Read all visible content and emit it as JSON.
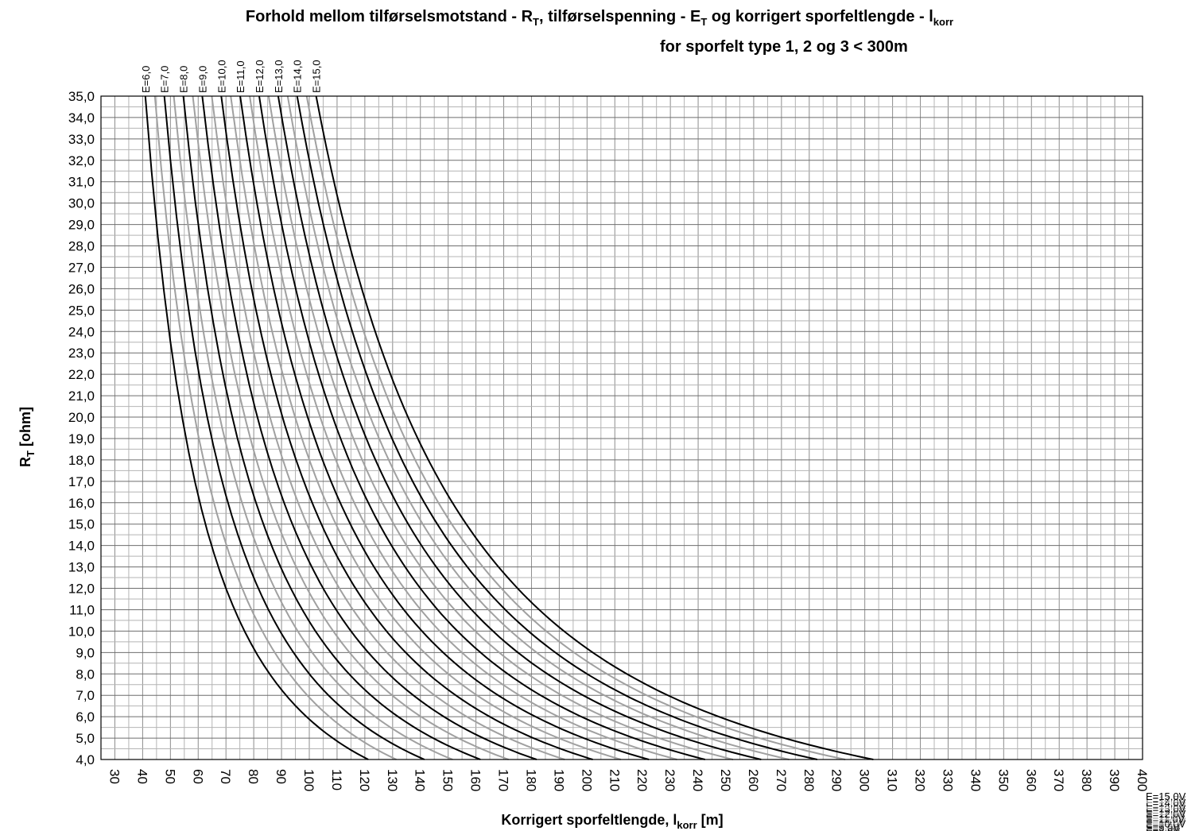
{
  "chart_data": {
    "type": "line",
    "title_parts": {
      "t1": "Forhold mellom tilførselsmotstand - R",
      "t1_sub": "T",
      "t2": ", tilførselspenning - E",
      "t2_sub": "T",
      "t3": " og korrigert sporfeltlengde - l",
      "t3_sub": "korr",
      "subtitle": "for sporfelt type 1, 2 og 3 < 300m"
    },
    "xlabel_parts": {
      "main": "Korrigert sporfeltlengde, l",
      "sub": "korr",
      "unit": " [m]"
    },
    "ylabel_parts": {
      "main": "R",
      "sub": "T",
      "unit": " [ohm]"
    },
    "xlim": [
      25,
      400
    ],
    "ylim": [
      4,
      35
    ],
    "x_ticks": [
      "30",
      "40",
      "50",
      "60",
      "70",
      "80",
      "90",
      "100",
      "110",
      "120",
      "130",
      "140",
      "150",
      "160",
      "170",
      "180",
      "190",
      "200",
      "210",
      "220",
      "230",
      "240",
      "250",
      "260",
      "270",
      "280",
      "290",
      "300",
      "310",
      "320",
      "330",
      "340",
      "350",
      "360",
      "370",
      "380",
      "390",
      "400"
    ],
    "y_ticks": [
      "4,0",
      "5,0",
      "6,0",
      "7,0",
      "8,0",
      "9,0",
      "10,0",
      "11,0",
      "12,0",
      "13,0",
      "14,0",
      "15,0",
      "16,0",
      "17,0",
      "18,0",
      "19,0",
      "20,0",
      "21,0",
      "22,0",
      "23,0",
      "24,0",
      "25,0",
      "26,0",
      "27,0",
      "28,0",
      "29,0",
      "30,0",
      "31,0",
      "32,0",
      "33,0",
      "34,0",
      "35,0"
    ],
    "grid": true,
    "model": "R = k * (E / l)^2",
    "model_k": 1633,
    "series": [
      {
        "voltage": 6.0,
        "top_label": "E=6,0",
        "end_label": "",
        "color": "#000000"
      },
      {
        "voltage": 6.5,
        "top_label": "",
        "end_label": "E=6,5V",
        "color": "#a0a0a0"
      },
      {
        "voltage": 7.0,
        "top_label": "E=7,0",
        "end_label": "E=7,0V",
        "color": "#000000"
      },
      {
        "voltage": 7.5,
        "top_label": "",
        "end_label": "E=7,5V",
        "color": "#a0a0a0"
      },
      {
        "voltage": 8.0,
        "top_label": "E=8,0",
        "end_label": "E=8,0V",
        "color": "#000000"
      },
      {
        "voltage": 8.5,
        "top_label": "",
        "end_label": "E=8,5V",
        "color": "#a0a0a0"
      },
      {
        "voltage": 9.0,
        "top_label": "E=9,0",
        "end_label": "E=9,0V",
        "color": "#000000"
      },
      {
        "voltage": 9.5,
        "top_label": "",
        "end_label": "E=9,5V",
        "color": "#a0a0a0"
      },
      {
        "voltage": 10.0,
        "top_label": "E=10,0",
        "end_label": "E=10,0V",
        "color": "#000000"
      },
      {
        "voltage": 10.5,
        "top_label": "",
        "end_label": "E=10,5V",
        "color": "#a0a0a0"
      },
      {
        "voltage": 11.0,
        "top_label": "E=11,0",
        "end_label": "E=11,0V",
        "color": "#000000"
      },
      {
        "voltage": 11.5,
        "top_label": "",
        "end_label": "E=11,5V",
        "color": "#a0a0a0"
      },
      {
        "voltage": 12.0,
        "top_label": "E=12,0",
        "end_label": "E=12,0V",
        "color": "#000000"
      },
      {
        "voltage": 12.5,
        "top_label": "",
        "end_label": "E=12,5V",
        "color": "#a0a0a0"
      },
      {
        "voltage": 13.0,
        "top_label": "E=13,0",
        "end_label": "E=13,0V",
        "color": "#000000"
      },
      {
        "voltage": 13.5,
        "top_label": "",
        "end_label": "E=13,5V",
        "color": "#a0a0a0"
      },
      {
        "voltage": 14.0,
        "top_label": "E=14,0",
        "end_label": "E=14,0V",
        "color": "#000000"
      },
      {
        "voltage": 14.5,
        "top_label": "",
        "end_label": "E=14,5V",
        "color": "#a0a0a0"
      },
      {
        "voltage": 15.0,
        "top_label": "E=15,0",
        "end_label": "E=15,0V",
        "color": "#000000"
      }
    ]
  }
}
